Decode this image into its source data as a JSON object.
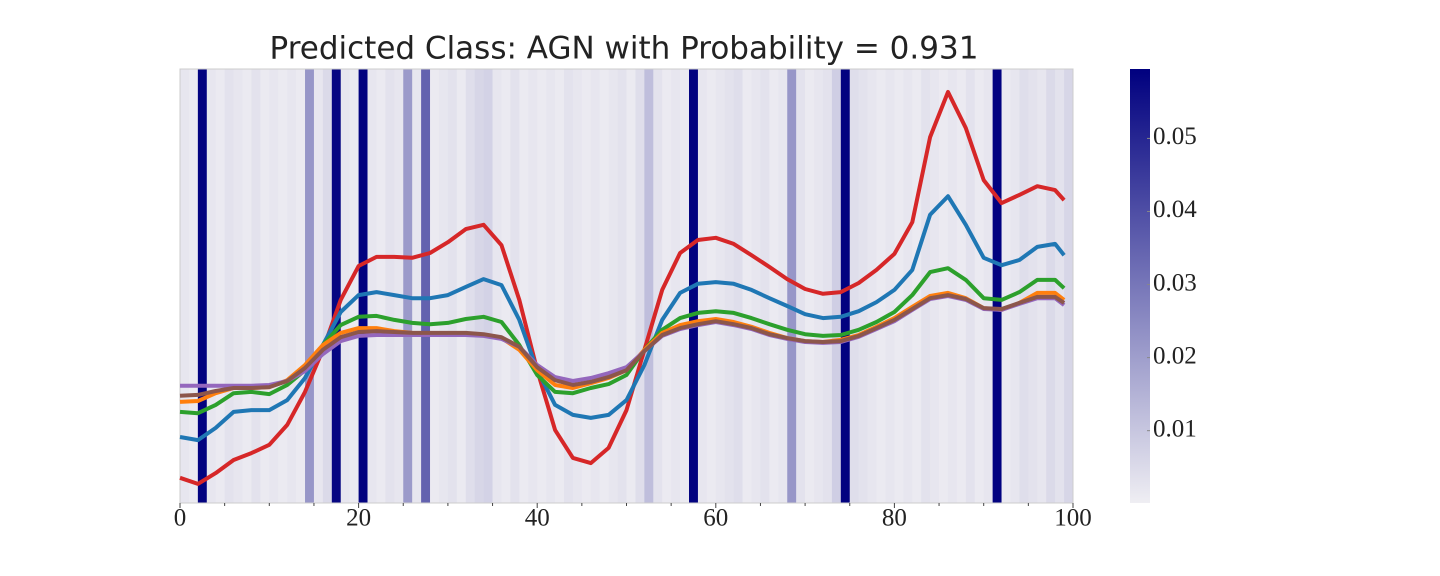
{
  "chart_data": {
    "type": "line",
    "title": "Predicted Class: AGN with Probability = 0.931",
    "xlim": [
      0,
      100
    ],
    "ylim": [
      0,
      1
    ],
    "xticks": [
      0,
      20,
      40,
      60,
      80,
      100
    ],
    "xminorticks": [
      5,
      10,
      15,
      25,
      30,
      35,
      45,
      50,
      55,
      65,
      70,
      75,
      85,
      90,
      95
    ],
    "background": {
      "cmap_colors": [
        "#efeef3",
        "#00007f"
      ],
      "clim": [
        0.0001,
        0.0595
      ],
      "cticks": [
        0.01,
        0.02,
        0.03,
        0.04,
        0.05
      ],
      "values": [
        0.002,
        0.001,
        0.059,
        0.002,
        0.001,
        0.003,
        0.002,
        0.001,
        0.003,
        0.001,
        0.002,
        0.001,
        0.002,
        0.001,
        0.022,
        0.002,
        0.005,
        0.058,
        0.002,
        0.001,
        0.059,
        0.002,
        0.001,
        0.003,
        0.002,
        0.021,
        0.002,
        0.035,
        0.001,
        0.002,
        0.003,
        0.001,
        0.004,
        0.006,
        0.007,
        0.002,
        0.001,
        0.003,
        0.001,
        0.002,
        0.001,
        0.002,
        0.001,
        0.003,
        0.002,
        0.001,
        0.002,
        0.001,
        0.002,
        0.003,
        0.001,
        0.004,
        0.012,
        0.003,
        0.001,
        0.002,
        0.001,
        0.059,
        0.002,
        0.001,
        0.002,
        0.003,
        0.004,
        0.001,
        0.002,
        0.003,
        0.001,
        0.002,
        0.022,
        0.003,
        0.001,
        0.002,
        0.003,
        0.008,
        0.059,
        0.004,
        0.003,
        0.002,
        0.001,
        0.002,
        0.001,
        0.002,
        0.001,
        0.003,
        0.002,
        0.001,
        0.002,
        0.001,
        0.003,
        0.001,
        0.002,
        0.059,
        0.001,
        0.002,
        0.004,
        0.003,
        0.002,
        0.005,
        0.003,
        0.006
      ]
    },
    "x": [
      0,
      2,
      4,
      6,
      8,
      10,
      12,
      14,
      16,
      18,
      20,
      22,
      24,
      26,
      28,
      30,
      32,
      34,
      36,
      38,
      40,
      42,
      44,
      46,
      48,
      50,
      52,
      54,
      56,
      58,
      60,
      62,
      64,
      66,
      68,
      70,
      72,
      74,
      76,
      78,
      80,
      82,
      84,
      86,
      88,
      90,
      92,
      94,
      96,
      98,
      99
    ],
    "series": [
      {
        "color": "#d62728",
        "values": [
          0.058,
          0.044,
          0.069,
          0.099,
          0.115,
          0.134,
          0.18,
          0.256,
          0.353,
          0.468,
          0.546,
          0.567,
          0.567,
          0.565,
          0.576,
          0.601,
          0.631,
          0.641,
          0.594,
          0.468,
          0.306,
          0.168,
          0.104,
          0.092,
          0.127,
          0.214,
          0.353,
          0.491,
          0.576,
          0.606,
          0.611,
          0.597,
          0.571,
          0.544,
          0.516,
          0.493,
          0.482,
          0.486,
          0.507,
          0.537,
          0.574,
          0.647,
          0.843,
          0.947,
          0.864,
          0.744,
          0.691,
          0.71,
          0.73,
          0.721,
          0.698
        ]
      },
      {
        "color": "#1f77b4",
        "values": [
          0.152,
          0.145,
          0.173,
          0.21,
          0.214,
          0.214,
          0.237,
          0.288,
          0.364,
          0.44,
          0.479,
          0.486,
          0.479,
          0.472,
          0.472,
          0.479,
          0.498,
          0.516,
          0.502,
          0.422,
          0.306,
          0.226,
          0.203,
          0.196,
          0.203,
          0.237,
          0.318,
          0.422,
          0.484,
          0.505,
          0.509,
          0.505,
          0.491,
          0.472,
          0.454,
          0.435,
          0.426,
          0.429,
          0.442,
          0.463,
          0.491,
          0.537,
          0.664,
          0.707,
          0.641,
          0.565,
          0.548,
          0.56,
          0.59,
          0.597,
          0.571
        ]
      },
      {
        "color": "#2ca02c",
        "values": [
          0.21,
          0.207,
          0.226,
          0.253,
          0.256,
          0.251,
          0.272,
          0.306,
          0.364,
          0.41,
          0.429,
          0.431,
          0.422,
          0.415,
          0.412,
          0.415,
          0.424,
          0.429,
          0.417,
          0.364,
          0.295,
          0.256,
          0.253,
          0.265,
          0.274,
          0.295,
          0.353,
          0.399,
          0.426,
          0.438,
          0.442,
          0.438,
          0.426,
          0.412,
          0.399,
          0.389,
          0.385,
          0.387,
          0.399,
          0.417,
          0.44,
          0.479,
          0.532,
          0.541,
          0.514,
          0.472,
          0.468,
          0.486,
          0.514,
          0.514,
          0.495
        ]
      },
      {
        "color": "#ff7f0e",
        "values": [
          0.233,
          0.235,
          0.253,
          0.265,
          0.265,
          0.267,
          0.283,
          0.318,
          0.364,
          0.392,
          0.403,
          0.403,
          0.396,
          0.392,
          0.389,
          0.389,
          0.389,
          0.387,
          0.38,
          0.353,
          0.306,
          0.272,
          0.265,
          0.276,
          0.288,
          0.306,
          0.353,
          0.392,
          0.41,
          0.419,
          0.424,
          0.417,
          0.406,
          0.392,
          0.38,
          0.373,
          0.371,
          0.376,
          0.387,
          0.406,
          0.426,
          0.452,
          0.477,
          0.484,
          0.472,
          0.449,
          0.445,
          0.461,
          0.484,
          0.484,
          0.468
        ]
      },
      {
        "color": "#9467bd",
        "values": [
          0.27,
          0.27,
          0.27,
          0.27,
          0.27,
          0.272,
          0.281,
          0.304,
          0.343,
          0.373,
          0.385,
          0.387,
          0.387,
          0.387,
          0.387,
          0.387,
          0.387,
          0.385,
          0.378,
          0.36,
          0.318,
          0.29,
          0.281,
          0.288,
          0.299,
          0.313,
          0.35,
          0.385,
          0.401,
          0.41,
          0.417,
          0.41,
          0.401,
          0.387,
          0.378,
          0.371,
          0.369,
          0.371,
          0.383,
          0.401,
          0.419,
          0.445,
          0.47,
          0.477,
          0.468,
          0.447,
          0.445,
          0.459,
          0.472,
          0.472,
          0.456
        ]
      },
      {
        "color": "#8c564b",
        "values": [
          0.247,
          0.249,
          0.258,
          0.265,
          0.265,
          0.267,
          0.281,
          0.311,
          0.353,
          0.382,
          0.394,
          0.396,
          0.394,
          0.392,
          0.392,
          0.392,
          0.392,
          0.389,
          0.382,
          0.36,
          0.313,
          0.283,
          0.272,
          0.279,
          0.29,
          0.306,
          0.35,
          0.387,
          0.403,
          0.412,
          0.419,
          0.412,
          0.403,
          0.389,
          0.38,
          0.373,
          0.371,
          0.373,
          0.385,
          0.403,
          0.422,
          0.447,
          0.472,
          0.479,
          0.47,
          0.449,
          0.447,
          0.461,
          0.475,
          0.475,
          0.461
        ]
      }
    ]
  }
}
